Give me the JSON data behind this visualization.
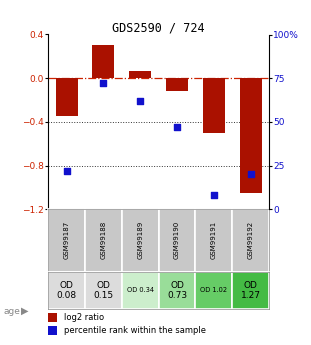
{
  "title": "GDS2590 / 724",
  "samples": [
    "GSM99187",
    "GSM99188",
    "GSM99189",
    "GSM99190",
    "GSM99191",
    "GSM99192"
  ],
  "log2_ratio": [
    -0.35,
    0.3,
    0.07,
    -0.12,
    -0.5,
    -1.05
  ],
  "percentile_rank": [
    22,
    72,
    62,
    47,
    8,
    20
  ],
  "bar_color": "#aa1100",
  "dot_color": "#1111cc",
  "ylim_left": [
    -1.2,
    0.4
  ],
  "ylim_right": [
    0,
    100
  ],
  "yticks_left": [
    0.4,
    0.0,
    -0.4,
    -0.8,
    -1.2
  ],
  "yticks_right": [
    100,
    75,
    50,
    25,
    0
  ],
  "ytick_right_labels": [
    "100%",
    "75",
    "50",
    "25",
    "0"
  ],
  "age_labels": [
    "OD\n0.08",
    "OD\n0.15",
    "OD 0.34",
    "OD\n0.73",
    "OD 1.02",
    "OD\n1.27"
  ],
  "age_fontsize_large": [
    true,
    true,
    false,
    true,
    false,
    true
  ],
  "cell_colors": [
    "#dcdcdc",
    "#dcdcdc",
    "#cceecc",
    "#99dd99",
    "#66cc66",
    "#44bb44"
  ],
  "gsm_bg_color": "#c8c8c8",
  "hline_color": "#cc2200",
  "hline_style": "-.",
  "dotline_color": "#333333",
  "dotline_style": ":"
}
